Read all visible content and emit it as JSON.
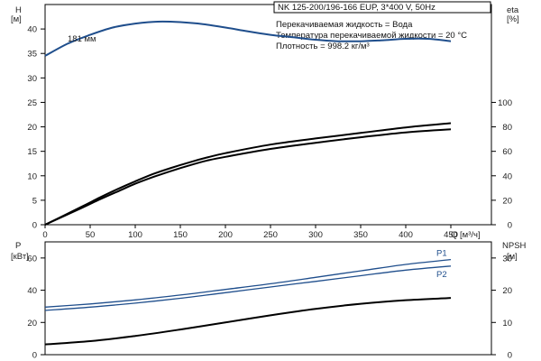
{
  "chart_data": [
    {
      "type": "line",
      "panel": "head-efficiency",
      "header": "NK 125-200/196-166 EUP, 3*400 V, 50Hz",
      "info_lines": [
        "Перекачиваемая жидкость = Вода",
        "Температура перекачиваемой жидкости = 20 °C",
        "Плотность = 998.2 кг/м³"
      ],
      "xlabel": "Q [м³/ч]",
      "x_ticks": [
        0,
        50,
        100,
        150,
        200,
        250,
        300,
        350,
        400,
        450
      ],
      "xlim": [
        0,
        495
      ],
      "left_axis": {
        "label_line1": "H",
        "label_line2": "[м]",
        "ylim": [
          0,
          45
        ],
        "ticks": [
          0,
          5,
          10,
          15,
          20,
          25,
          30,
          35,
          40
        ]
      },
      "right_axis": {
        "label_line1": "eta",
        "label_line2": "[%]",
        "ylim": [
          0,
          180
        ],
        "ticks": [
          0,
          20,
          40,
          60,
          80,
          100
        ]
      },
      "series": [
        {
          "axis": "left",
          "color": "#1f4e8c",
          "x": [
            0,
            25,
            50,
            75,
            100,
            125,
            150,
            175,
            200,
            225,
            250,
            275,
            300,
            325,
            350,
            375,
            400,
            425,
            450
          ],
          "y": [
            34.5,
            37.0,
            38.8,
            40.3,
            41.1,
            41.5,
            41.4,
            41.0,
            40.3,
            39.5,
            38.8,
            38.3,
            37.8,
            37.5,
            37.5,
            37.7,
            38.0,
            38.0,
            37.5
          ]
        },
        {
          "axis": "right",
          "color": "#000000",
          "x": [
            0,
            40,
            60,
            80,
            100,
            120,
            140,
            160,
            180,
            200,
            250,
            300,
            350,
            400,
            450
          ],
          "y": [
            0,
            14.5,
            22,
            29,
            35.5,
            41.5,
            46.5,
            51,
            55,
            58.5,
            65.5,
            70.5,
            75,
            79.5,
            83
          ]
        },
        {
          "axis": "right",
          "color": "#000000",
          "x": [
            0,
            40,
            60,
            80,
            100,
            120,
            140,
            160,
            180,
            200,
            250,
            300,
            350,
            400,
            450
          ],
          "y": [
            0,
            13.5,
            20.5,
            27,
            33.5,
            39,
            44,
            48.5,
            52.5,
            55.5,
            62,
            67,
            71.5,
            75.5,
            78
          ]
        }
      ],
      "annotation": {
        "text": "181 мм",
        "x": 25,
        "y": 38.0
      }
    },
    {
      "type": "line",
      "panel": "power-npsh",
      "xlim": [
        0,
        495
      ],
      "left_axis": {
        "label_line1": "P",
        "label_line2": "[кВт]",
        "ylim": [
          0,
          70
        ],
        "ticks": [
          0,
          20,
          40,
          60
        ]
      },
      "right_axis": {
        "label_line1": "NPSH",
        "label_line2": "[м]",
        "ylim": [
          0,
          35
        ],
        "ticks": [
          0,
          10,
          20,
          30
        ]
      },
      "series": [
        {
          "name": "P1",
          "axis": "left",
          "color": "#1f4e8c",
          "x": [
            0,
            50,
            100,
            150,
            200,
            250,
            300,
            350,
            400,
            450
          ],
          "y": [
            29.5,
            31.5,
            34,
            37,
            40.5,
            44,
            48,
            52,
            56,
            59
          ]
        },
        {
          "name": "P2",
          "axis": "left",
          "color": "#1f4e8c",
          "x": [
            0,
            50,
            100,
            150,
            200,
            250,
            300,
            350,
            400,
            450
          ],
          "y": [
            27.5,
            29.5,
            32,
            35,
            38.5,
            42,
            45.5,
            49,
            52.5,
            55
          ]
        },
        {
          "axis": "right",
          "color": "#000000",
          "x": [
            0,
            50,
            100,
            150,
            200,
            250,
            300,
            350,
            400,
            450
          ],
          "y": [
            3.2,
            4.2,
            5.8,
            7.8,
            10,
            12.2,
            14.2,
            15.8,
            16.9,
            17.6
          ]
        }
      ]
    }
  ]
}
